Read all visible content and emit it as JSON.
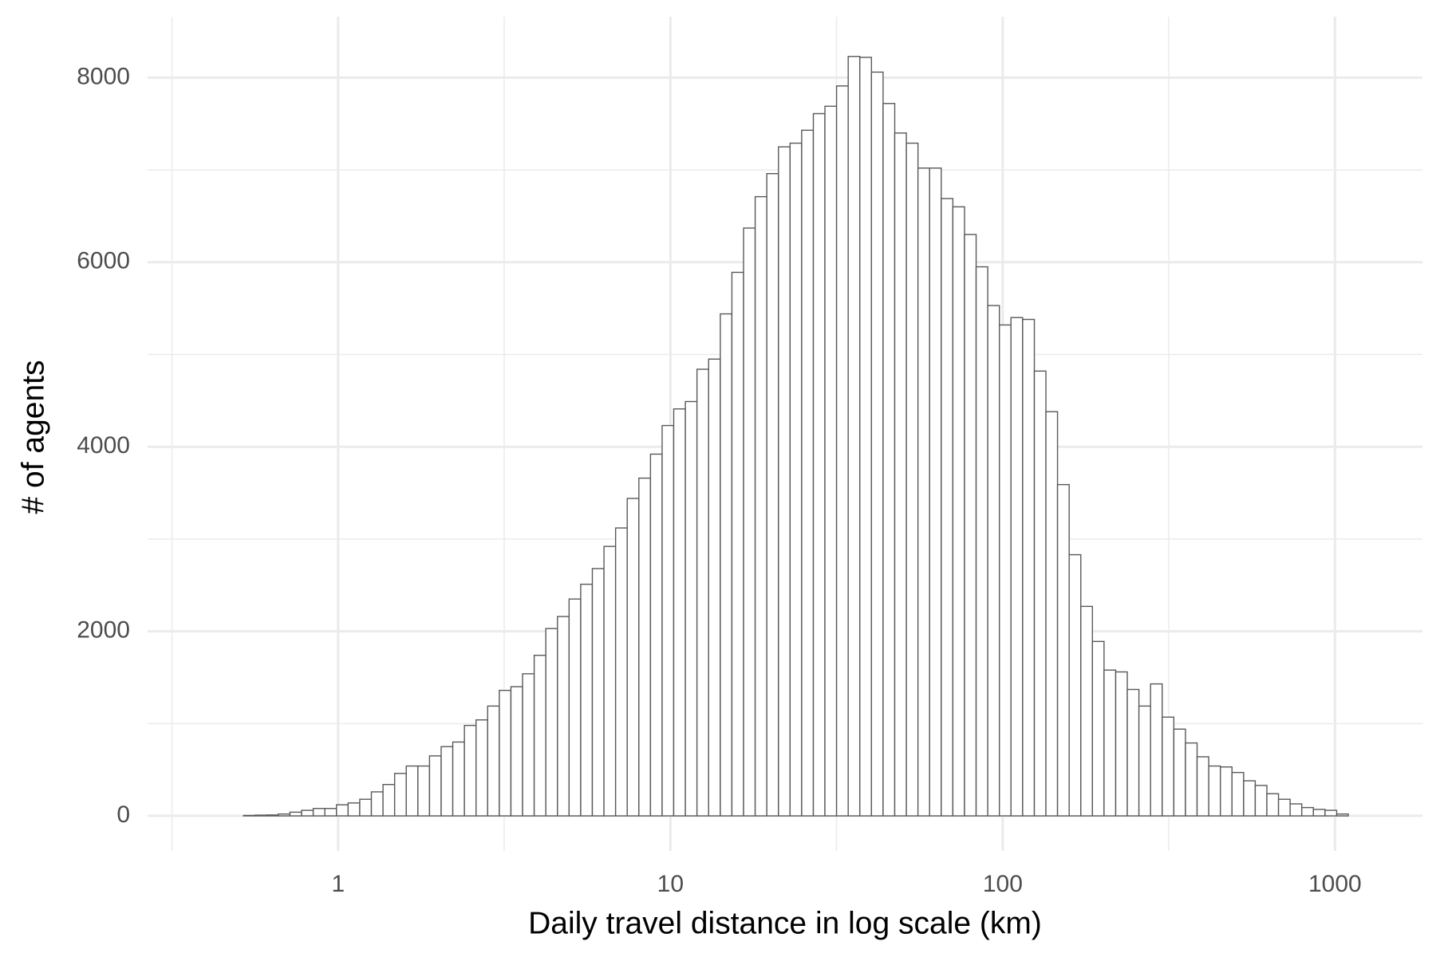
{
  "chart_data": {
    "type": "histogram",
    "x_label": "Daily travel distance in log scale (km)",
    "y_label": "# of agents",
    "bins": [
      0.4074,
      0.4416,
      0.4786,
      0.5188,
      0.5623,
      0.6095,
      0.6607,
      0.7161,
      0.7762,
      0.8414,
      0.912,
      0.9886,
      1.0715,
      1.1614,
      1.2589,
      1.3646,
      1.4791,
      1.6032,
      1.7378,
      1.8836,
      2.0417,
      2.2131,
      2.3988,
      2.6002,
      2.8184,
      3.0549,
      3.3113,
      3.5892,
      3.8905,
      4.217,
      4.5709,
      4.9545,
      5.3703,
      5.821,
      6.3096,
      6.8391,
      7.4131,
      8.0353,
      8.7096,
      9.4406,
      10.23,
      11.09,
      12.02,
      13.03,
      14.13,
      15.31,
      16.6,
      17.99,
      19.5,
      21.14,
      22.91,
      24.83,
      26.92,
      29.17,
      31.62,
      34.28,
      37.15,
      40.27,
      43.65,
      47.32,
      51.29,
      55.59,
      60.26,
      65.31,
      70.79,
      76.74,
      83.18,
      90.16,
      97.72,
      105.9,
      114.8,
      124.5,
      134.9,
      146.2,
      158.5,
      171.8,
      186.2,
      201.8,
      218.8,
      237.1,
      257.0,
      278.6,
      302.0,
      327.3,
      354.8,
      384.6,
      416.9,
      451.9,
      489.8,
      530.9,
      575.4,
      623.7,
      676.1,
      732.8,
      794.3,
      861.0,
      933.3,
      1011.6,
      1096.5,
      1188.5
    ],
    "counts": [
      0,
      0,
      0,
      5,
      8,
      10,
      20,
      40,
      60,
      80,
      80,
      120,
      140,
      180,
      260,
      340,
      460,
      540,
      540,
      650,
      750,
      800,
      980,
      1040,
      1190,
      1360,
      1400,
      1540,
      1740,
      2030,
      2160,
      2350,
      2510,
      2680,
      2920,
      3120,
      3440,
      3660,
      3920,
      4230,
      4410,
      4490,
      4840,
      4950,
      5440,
      5890,
      6370,
      6710,
      6960,
      7250,
      7290,
      7430,
      7610,
      7690,
      7910,
      8230,
      8220,
      8060,
      7720,
      7400,
      7290,
      7020,
      7020,
      6690,
      6600,
      6300,
      5950,
      5530,
      5320,
      5400,
      5380,
      4820,
      4380,
      3590,
      2830,
      2270,
      1890,
      1580,
      1560,
      1370,
      1190,
      1430,
      1070,
      940,
      790,
      640,
      540,
      530,
      470,
      380,
      330,
      240,
      180,
      130,
      90,
      70,
      60,
      20,
      0
    ],
    "fill": "#ffffff",
    "edge_color": "#595959",
    "xlog": true,
    "xlim": [
      0.267,
      1833
    ],
    "ylim": [
      -380,
      8660
    ],
    "xticks": [
      1,
      10,
      100,
      1000
    ],
    "yticks": [
      0,
      2000,
      4000,
      6000,
      8000
    ],
    "xminor": [
      0.316,
      3.16,
      31.6,
      316
    ],
    "yminor": [
      1000,
      3000,
      5000,
      7000
    ],
    "grid": true
  }
}
